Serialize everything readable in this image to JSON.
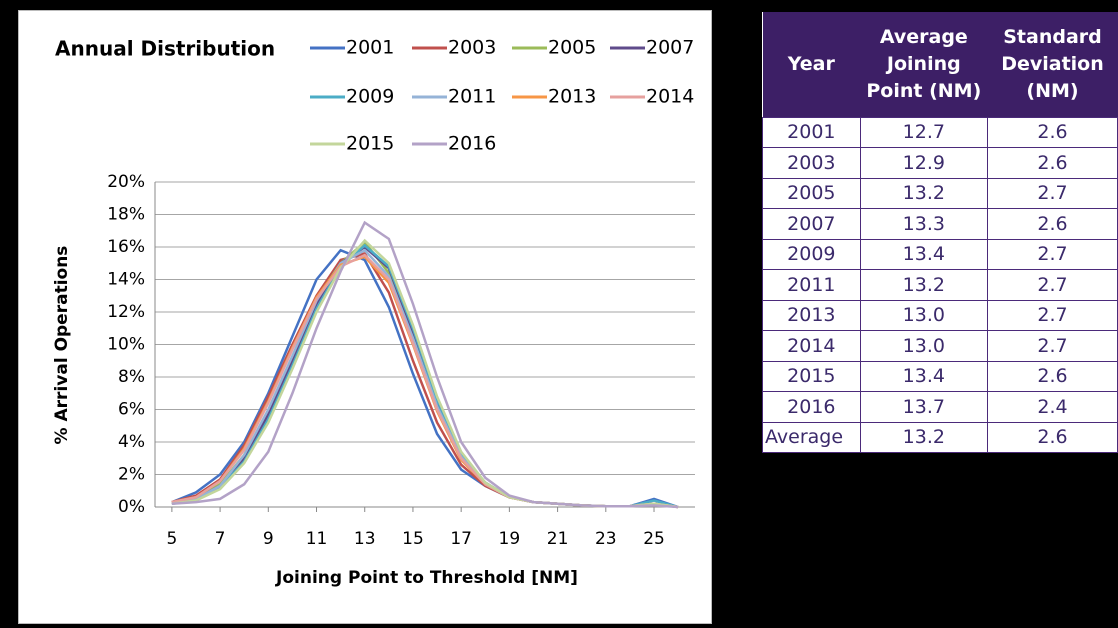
{
  "chart_data": {
    "type": "line",
    "title": "Annual Distribution",
    "x_label": "Joining Point to Threshold [NM]",
    "y_label": "% Arrival Operations",
    "x": [
      5,
      6,
      7,
      8,
      9,
      10,
      11,
      12,
      13,
      14,
      15,
      16,
      17,
      18,
      19,
      20,
      21,
      22,
      23,
      24,
      25,
      26
    ],
    "xlim": [
      4.3,
      26.7
    ],
    "xticks": [
      5,
      7,
      9,
      11,
      13,
      15,
      17,
      19,
      21,
      23,
      25
    ],
    "ylim": [
      0,
      20
    ],
    "yticks": [
      {
        "value": 0,
        "label": "0%"
      },
      {
        "value": 2,
        "label": "2%"
      },
      {
        "value": 4,
        "label": "4%"
      },
      {
        "value": 6,
        "label": "6%"
      },
      {
        "value": 8,
        "label": "8%"
      },
      {
        "value": 10,
        "label": "10%"
      },
      {
        "value": 12,
        "label": "12%"
      },
      {
        "value": 14,
        "label": "14%"
      },
      {
        "value": 16,
        "label": "16%"
      },
      {
        "value": 18,
        "label": "18%"
      },
      {
        "value": 20,
        "label": "20%"
      }
    ],
    "grid": true,
    "series": [
      {
        "name": "2001",
        "color": "#4472c4",
        "values": [
          0.3,
          0.9,
          2.0,
          4.0,
          7.0,
          10.5,
          14.0,
          15.8,
          15.2,
          12.3,
          8.2,
          4.5,
          2.3,
          1.3,
          0.6,
          0.3,
          0.2,
          0.1,
          0.05,
          0.05,
          0.5,
          0
        ]
      },
      {
        "name": "2003",
        "color": "#c0504d",
        "values": [
          0.3,
          0.7,
          1.7,
          3.8,
          6.8,
          10.0,
          13.0,
          15.2,
          15.6,
          13.2,
          9.0,
          5.2,
          2.6,
          1.3,
          0.6,
          0.3,
          0.2,
          0.1,
          0.05,
          0.05,
          0.2,
          0
        ]
      },
      {
        "name": "2005",
        "color": "#9bbb59",
        "values": [
          0.2,
          0.5,
          1.4,
          3.2,
          5.9,
          9.2,
          12.8,
          15.0,
          16.3,
          14.4,
          10.2,
          6.0,
          3.0,
          1.4,
          0.6,
          0.3,
          0.2,
          0.1,
          0.05,
          0.05,
          0.2,
          0
        ]
      },
      {
        "name": "2007",
        "color": "#5f4b8b",
        "values": [
          0.2,
          0.5,
          1.3,
          3.0,
          5.7,
          9.0,
          12.5,
          15.0,
          16.0,
          14.7,
          10.7,
          6.3,
          3.1,
          1.5,
          0.6,
          0.3,
          0.2,
          0.1,
          0.05,
          0.05,
          0.2,
          0
        ]
      },
      {
        "name": "2009",
        "color": "#4bacc6",
        "values": [
          0.2,
          0.4,
          1.2,
          2.8,
          5.4,
          8.7,
          12.2,
          14.8,
          16.1,
          14.8,
          11.0,
          6.6,
          3.3,
          1.5,
          0.6,
          0.3,
          0.2,
          0.1,
          0.05,
          0.05,
          0.4,
          0
        ]
      },
      {
        "name": "2011",
        "color": "#95b3d7",
        "values": [
          0.2,
          0.5,
          1.3,
          3.2,
          6.0,
          9.3,
          12.7,
          15.0,
          15.8,
          14.2,
          10.4,
          6.2,
          3.1,
          1.4,
          0.6,
          0.3,
          0.2,
          0.1,
          0.05,
          0.05,
          0.2,
          0
        ]
      },
      {
        "name": "2013",
        "color": "#f79646",
        "values": [
          0.3,
          0.6,
          1.6,
          3.6,
          6.5,
          9.8,
          12.9,
          14.9,
          15.4,
          13.8,
          10.0,
          5.9,
          2.9,
          1.4,
          0.6,
          0.3,
          0.2,
          0.1,
          0.05,
          0.05,
          0.2,
          0
        ]
      },
      {
        "name": "2014",
        "color": "#e6a09e",
        "values": [
          0.3,
          0.6,
          1.6,
          3.5,
          6.4,
          9.7,
          12.8,
          14.8,
          15.5,
          14.0,
          10.1,
          6.0,
          3.0,
          1.4,
          0.6,
          0.3,
          0.2,
          0.1,
          0.05,
          0.05,
          0.2,
          0
        ]
      },
      {
        "name": "2015",
        "color": "#c3d69b",
        "values": [
          0.2,
          0.4,
          1.1,
          2.7,
          5.2,
          8.5,
          12.0,
          14.7,
          16.4,
          15.0,
          11.2,
          6.8,
          3.4,
          1.5,
          0.6,
          0.3,
          0.2,
          0.1,
          0.05,
          0.05,
          0.2,
          0
        ]
      },
      {
        "name": "2016",
        "color": "#b3a2c7",
        "values": [
          0.2,
          0.3,
          0.5,
          1.4,
          3.4,
          7.0,
          11.0,
          14.5,
          17.5,
          16.5,
          12.5,
          8.0,
          4.0,
          1.8,
          0.7,
          0.3,
          0.2,
          0.1,
          0.05,
          0.05,
          0.1,
          0
        ]
      }
    ]
  },
  "table": {
    "header": [
      "Year",
      "Average Joining Point (NM)",
      "Standard Deviation (NM)"
    ],
    "rows": [
      [
        "2001",
        "12.7",
        "2.6"
      ],
      [
        "2003",
        "12.9",
        "2.6"
      ],
      [
        "2005",
        "13.2",
        "2.7"
      ],
      [
        "2007",
        "13.3",
        "2.6"
      ],
      [
        "2009",
        "13.4",
        "2.7"
      ],
      [
        "2011",
        "13.2",
        "2.7"
      ],
      [
        "2013",
        "13.0",
        "2.7"
      ],
      [
        "2014",
        "13.0",
        "2.7"
      ],
      [
        "2015",
        "13.4",
        "2.6"
      ],
      [
        "2016",
        "13.7",
        "2.4"
      ],
      [
        "Average",
        "13.2",
        "2.6"
      ]
    ]
  }
}
